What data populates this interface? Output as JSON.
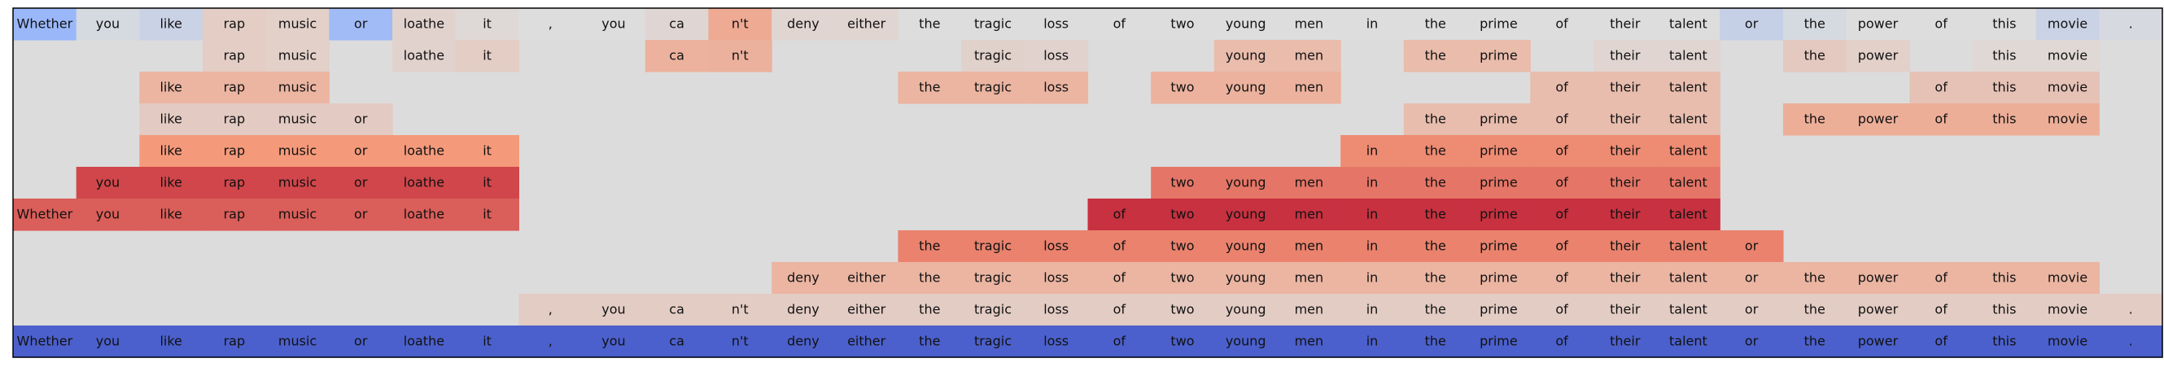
{
  "chart_data": {
    "type": "heatmap",
    "title": "",
    "xlabel": "",
    "ylabel": "",
    "grid": false,
    "tokens": [
      "Whether",
      "you",
      "like",
      "rap",
      "music",
      "or",
      "loathe",
      "it",
      ",",
      "you",
      "ca",
      "n't",
      "deny",
      "either",
      "the",
      "tragic",
      "loss",
      "of",
      "two",
      "young",
      "men",
      "in",
      "the",
      "prime",
      "of",
      "their",
      "talent",
      "or",
      "the",
      "power",
      "of",
      "this",
      "movie",
      "."
    ],
    "rows": [
      {
        "span": [
          0,
          33
        ],
        "values": [
          -0.42,
          -0.05,
          -0.12,
          0.12,
          0.1,
          -0.38,
          0.08,
          0.03,
          0.0,
          0.0,
          0.05,
          0.38,
          0.06,
          0.06,
          0.0,
          0.0,
          0.0,
          0.0,
          0.0,
          0.0,
          0.0,
          0.0,
          0.0,
          0.0,
          0.0,
          0.0,
          0.0,
          -0.15,
          -0.05,
          0.0,
          0.0,
          0.0,
          -0.12,
          -0.04
        ]
      },
      {
        "span": [
          3,
          32
        ],
        "cells": [
          3,
          4,
          6,
          7,
          10,
          11,
          15,
          16,
          19,
          20,
          22,
          23,
          25,
          26,
          28,
          29,
          31,
          32
        ],
        "values": [
          0.12,
          0.1,
          0.08,
          0.12,
          0.32,
          0.33,
          0.09,
          0.08,
          0.25,
          0.25,
          0.25,
          0.25,
          0.06,
          0.06,
          0.15,
          0.1,
          0.04,
          0.04
        ]
      },
      {
        "span": [
          2,
          32
        ],
        "cells": [
          2,
          3,
          4,
          14,
          15,
          16,
          18,
          19,
          20,
          24,
          25,
          26,
          30,
          31,
          32
        ],
        "values": [
          0.3,
          0.3,
          0.3,
          0.3,
          0.3,
          0.3,
          0.32,
          0.32,
          0.32,
          0.24,
          0.24,
          0.24,
          0.2,
          0.2,
          0.2
        ]
      },
      {
        "span": [
          2,
          32
        ],
        "cells": [
          2,
          3,
          4,
          5,
          22,
          23,
          24,
          25,
          26,
          28,
          29,
          30,
          31,
          32
        ],
        "values": [
          0.14,
          0.14,
          0.14,
          0.14,
          0.24,
          0.24,
          0.24,
          0.24,
          0.24,
          0.35,
          0.35,
          0.35,
          0.35,
          0.35
        ]
      },
      {
        "span": [
          2,
          26
        ],
        "cells": [
          2,
          3,
          4,
          5,
          6,
          7,
          21,
          22,
          23,
          24,
          25,
          26
        ],
        "values": [
          0.5,
          0.5,
          0.5,
          0.5,
          0.5,
          0.5,
          0.55,
          0.55,
          0.55,
          0.55,
          0.55,
          0.55
        ]
      },
      {
        "span": [
          1,
          26
        ],
        "cells": [
          1,
          2,
          3,
          4,
          5,
          6,
          7,
          18,
          19,
          20,
          21,
          22,
          23,
          24,
          25,
          26
        ],
        "values": [
          0.78,
          0.78,
          0.78,
          0.78,
          0.78,
          0.78,
          0.78,
          0.62,
          0.62,
          0.62,
          0.62,
          0.62,
          0.62,
          0.62,
          0.62,
          0.62
        ]
      },
      {
        "span": [
          0,
          26
        ],
        "cells": [
          0,
          1,
          2,
          3,
          4,
          5,
          6,
          7,
          17,
          18,
          19,
          20,
          21,
          22,
          23,
          24,
          25,
          26
        ],
        "values": [
          0.7,
          0.7,
          0.7,
          0.7,
          0.7,
          0.7,
          0.7,
          0.7,
          0.85,
          0.85,
          0.85,
          0.85,
          0.85,
          0.85,
          0.85,
          0.85,
          0.85,
          0.85
        ]
      },
      {
        "span": [
          14,
          27
        ],
        "cells": [
          14,
          15,
          16,
          17,
          18,
          19,
          20,
          21,
          22,
          23,
          24,
          25,
          26,
          27
        ],
        "values": [
          0.58,
          0.58,
          0.58,
          0.58,
          0.58,
          0.58,
          0.58,
          0.58,
          0.58,
          0.58,
          0.58,
          0.58,
          0.58,
          0.58
        ]
      },
      {
        "span": [
          12,
          32
        ],
        "cells": [
          12,
          13,
          14,
          15,
          16,
          17,
          18,
          19,
          20,
          21,
          22,
          23,
          24,
          25,
          26,
          27,
          28,
          29,
          30,
          31,
          32
        ],
        "values": [
          0.3,
          0.3,
          0.3,
          0.3,
          0.3,
          0.3,
          0.3,
          0.3,
          0.3,
          0.3,
          0.3,
          0.3,
          0.3,
          0.3,
          0.3,
          0.3,
          0.3,
          0.3,
          0.3,
          0.3,
          0.3
        ]
      },
      {
        "span": [
          8,
          33
        ],
        "cells": [
          8,
          9,
          10,
          11,
          12,
          13,
          14,
          15,
          16,
          17,
          18,
          19,
          20,
          21,
          22,
          23,
          24,
          25,
          26,
          27,
          28,
          29,
          30,
          31,
          32,
          33
        ],
        "values": [
          0.13,
          0.13,
          0.13,
          0.13,
          0.13,
          0.13,
          0.13,
          0.13,
          0.13,
          0.13,
          0.13,
          0.13,
          0.13,
          0.13,
          0.13,
          0.13,
          0.13,
          0.13,
          0.13,
          0.13,
          0.13,
          0.13,
          0.13,
          0.13,
          0.13,
          0.13
        ]
      },
      {
        "span": [
          0,
          33
        ],
        "values": [
          -0.9,
          -0.9,
          -0.9,
          -0.9,
          -0.9,
          -0.9,
          -0.9,
          -0.9,
          -0.9,
          -0.9,
          -0.9,
          -0.9,
          -0.9,
          -0.9,
          -0.9,
          -0.9,
          -0.9,
          -0.9,
          -0.9,
          -0.9,
          -0.9,
          -0.9,
          -0.9,
          -0.9,
          -0.9,
          -0.9,
          -0.9,
          -0.9,
          -0.9,
          -0.9,
          -0.9,
          -0.9,
          -0.9,
          -0.9
        ]
      }
    ],
    "color_scale": {
      "min": -1,
      "max": 1,
      "colormap": "coolwarm",
      "neutral": "#dcdcdc"
    }
  }
}
